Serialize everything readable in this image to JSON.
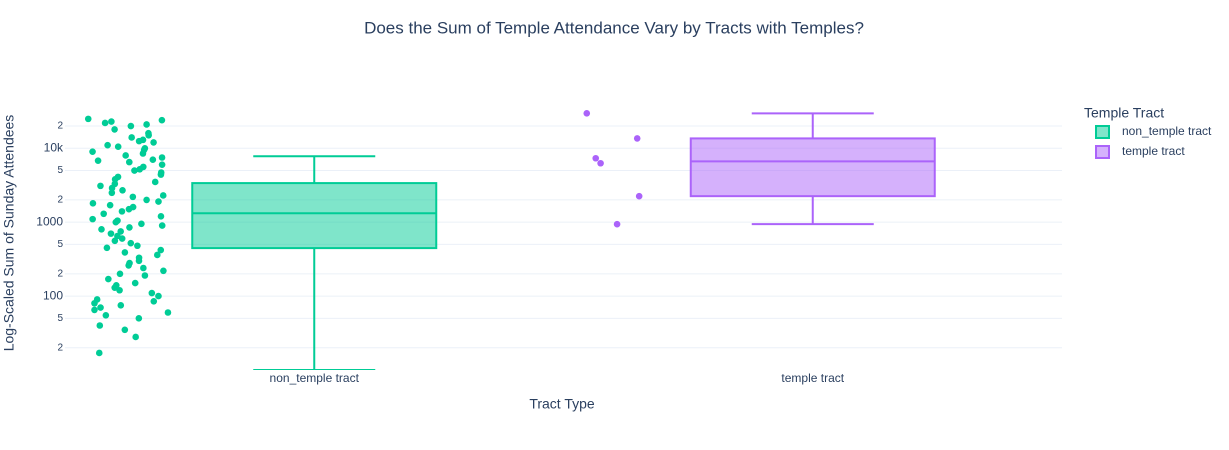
{
  "chart_data": {
    "type": "box",
    "title": "Does the Sum of Temple Attendance Vary by Tracts with Temples?",
    "x_label": "Tract Type",
    "y_label": "Log-Scaled Sum of Sunday Attendees",
    "log_y": true,
    "grid": true,
    "legend_title": "Temple Tract",
    "legend_position": "right",
    "ylim": [
      10,
      45000
    ],
    "yticks": [
      {
        "value": 20,
        "label": "2"
      },
      {
        "value": 50,
        "label": "5"
      },
      100,
      {
        "value": 200,
        "label": "2"
      },
      {
        "value": 500,
        "label": "5"
      },
      1000,
      {
        "value": 2000,
        "label": "2"
      },
      {
        "value": 5000,
        "label": "5"
      },
      {
        "value": 10000,
        "label": "10k"
      },
      {
        "value": 20000,
        "label": "2"
      }
    ],
    "categories": [
      "non_temple tract",
      "temple tract"
    ],
    "series": [
      {
        "name": "non_temple tract",
        "color": "#00cc96",
        "lowerfence": 10,
        "q1": 446,
        "median": 1320,
        "q3": 3380,
        "upperfence": 7800,
        "points": [
          25000,
          24000,
          23000,
          22000,
          21000,
          20000,
          18000,
          16000,
          15000,
          14000,
          13000,
          12500,
          12000,
          11000,
          10500,
          10000,
          9500,
          9000,
          8500,
          8000,
          7500,
          7000,
          6800,
          6500,
          6000,
          5600,
          5200,
          5000,
          4700,
          4400,
          4100,
          3800,
          3500,
          3300,
          3100,
          2900,
          2700,
          2500,
          2300,
          2200,
          2000,
          1900,
          1800,
          1700,
          1600,
          1500,
          1400,
          1300,
          1200,
          1100,
          1050,
          1000,
          950,
          900,
          850,
          800,
          750,
          700,
          650,
          600,
          560,
          520,
          480,
          450,
          420,
          390,
          360,
          330,
          300,
          280,
          260,
          240,
          220,
          200,
          190,
          170,
          150,
          140,
          130,
          120,
          110,
          100,
          90,
          85,
          80,
          75,
          70,
          65,
          60,
          55,
          50,
          40,
          35,
          28,
          17
        ]
      },
      {
        "name": "temple tract",
        "color": "#ab63fa",
        "lowerfence": 940,
        "q1": 2250,
        "median": 6650,
        "q3": 13600,
        "upperfence": 29700,
        "points": [
          29700,
          13600,
          7330,
          6270,
          2250,
          940
        ]
      }
    ]
  }
}
